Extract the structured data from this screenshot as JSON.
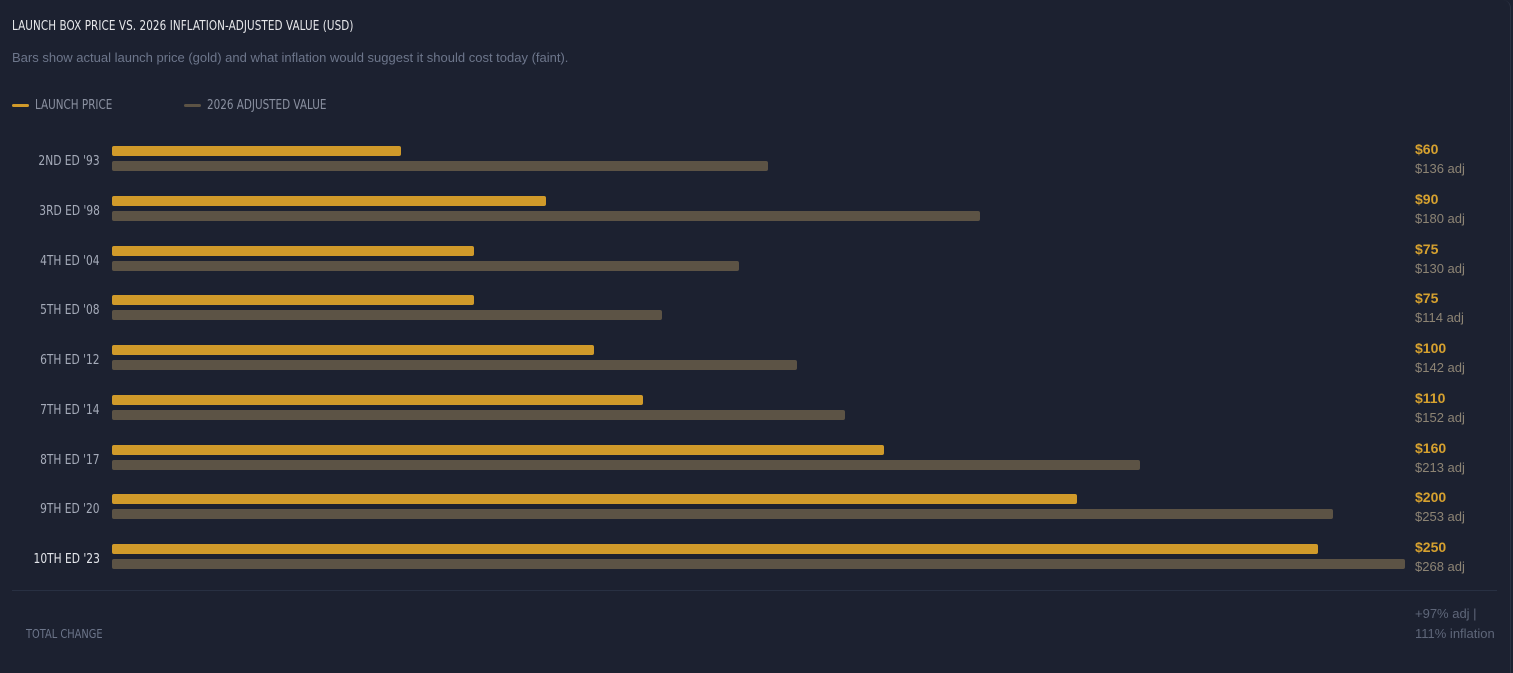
{
  "header": {
    "title": "LAUNCH BOX PRICE VS. 2026 INFLATION-ADJUSTED VALUE (USD)",
    "subtitle": "Bars show actual launch price (gold) and what inflation would suggest it should cost today (faint)."
  },
  "legend": {
    "launch_label": "LAUNCH PRICE",
    "adjusted_label": "2026 ADJUSTED VALUE"
  },
  "colors": {
    "launch": "#d09a2a",
    "adjusted": "#5c5345",
    "background": "#1c2130"
  },
  "chart_data": {
    "type": "bar",
    "orientation": "horizontal",
    "title": "LAUNCH BOX PRICE VS. 2026 INFLATION-ADJUSTED VALUE (USD)",
    "categories": [
      "2ND ED '93",
      "3RD ED '98",
      "4TH ED '04",
      "5TH ED '08",
      "6TH ED '12",
      "7TH ED '14",
      "8TH ED '17",
      "9TH ED '20",
      "10TH ED '23"
    ],
    "series": [
      {
        "name": "LAUNCH PRICE",
        "values": [
          60,
          90,
          75,
          75,
          100,
          110,
          160,
          200,
          250
        ],
        "labels": [
          "$60",
          "$90",
          "$75",
          "$75",
          "$100",
          "$110",
          "$160",
          "$200",
          "$250"
        ]
      },
      {
        "name": "2026 ADJUSTED VALUE",
        "values": [
          136,
          180,
          130,
          114,
          142,
          152,
          213,
          253,
          268
        ],
        "labels": [
          "$136 adj",
          "$180 adj",
          "$130 adj",
          "$114 adj",
          "$142 adj",
          "$152 adj",
          "$213 adj",
          "$253 adj",
          "$268 adj"
        ]
      }
    ],
    "xlim": [
      0,
      268
    ],
    "grid": false,
    "legend_position": "top-left"
  },
  "footer": {
    "total_label": "TOTAL CHANGE",
    "total_value": "+97% adj  |  111% inflation"
  }
}
